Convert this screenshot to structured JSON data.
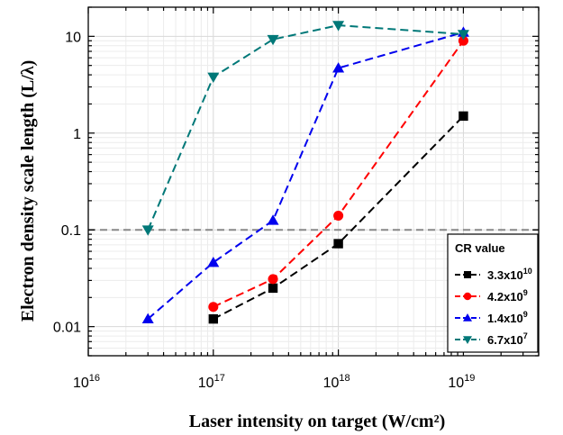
{
  "chart_data": {
    "type": "line",
    "xlabel": "Laser intensity on target (W/cm²)",
    "ylabel": "Electron density scale length (L/λ)",
    "x_scale": "log",
    "y_scale": "log",
    "xlim": [
      1e+16,
      4e+19
    ],
    "ylim": [
      0.005,
      20
    ],
    "x_ticks": [
      {
        "value": 1e+16,
        "base": "10",
        "exp": "16"
      },
      {
        "value": 1e+17,
        "base": "10",
        "exp": "17"
      },
      {
        "value": 1e+18,
        "base": "10",
        "exp": "18"
      },
      {
        "value": 1e+19,
        "base": "10",
        "exp": "19"
      }
    ],
    "y_ticks": [
      {
        "value": 0.01,
        "label": "0.01"
      },
      {
        "value": 0.1,
        "label": "0.1"
      },
      {
        "value": 1,
        "label": "1"
      },
      {
        "value": 10,
        "label": "10"
      }
    ],
    "grid": true,
    "reference_line": {
      "y": 0.1,
      "color": "#888888",
      "style": "dashed"
    },
    "legend": {
      "title": "CR value",
      "position": "bottom-right"
    },
    "series": [
      {
        "name": "3.3x10",
        "name_exp": "10",
        "color": "#000000",
        "marker": "square",
        "x": [
          1e+17,
          3e+17,
          1e+18,
          1e+19
        ],
        "y": [
          0.012,
          0.025,
          0.072,
          1.5
        ]
      },
      {
        "name": "4.2x10",
        "name_exp": "9",
        "color": "#ff0000",
        "marker": "circle",
        "x": [
          1e+17,
          3e+17,
          1e+18,
          1e+19
        ],
        "y": [
          0.016,
          0.031,
          0.14,
          9.0
        ]
      },
      {
        "name": "1.4x10",
        "name_exp": "9",
        "color": "#0000ee",
        "marker": "triangle-up",
        "x": [
          3e+16,
          1e+17,
          3e+17,
          1e+18,
          1e+19
        ],
        "y": [
          0.012,
          0.046,
          0.125,
          4.7,
          11
        ]
      },
      {
        "name": "6.7x10",
        "name_exp": "7",
        "color": "#007878",
        "marker": "triangle-down",
        "x": [
          3e+16,
          1e+17,
          3e+17,
          1e+18,
          1e+19
        ],
        "y": [
          0.1,
          3.8,
          9.3,
          13,
          10.5
        ]
      }
    ]
  }
}
